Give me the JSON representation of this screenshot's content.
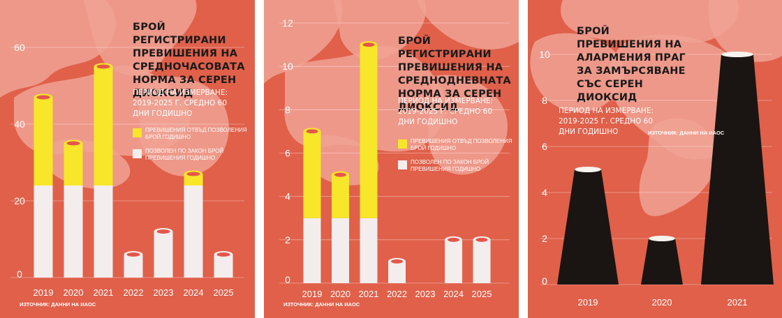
{
  "colors": {
    "background": "#e0604a",
    "smoke": "#f0a294",
    "yellow": "#f7e62a",
    "white": "#f3eded",
    "chimney": "#1a1512"
  },
  "panels": [
    {
      "title": "БРОЙ РЕГИСТРИРАНИ ПРЕВИШЕНИЯ НА СРЕДНОЧАСОВАТА НОРМА ЗА СЕРЕН ДИОКСИД",
      "period": "ПЕРИОД НА ИЗМЕРВАНЕ: 2019-2025 Г. СРЕДНО 60 ДНИ ГОДИШНО",
      "legend": [
        {
          "label": "ПРЕВИШЕНИЯ ОТВЪД ПОЗВОЛЕНИЯ БРОЙ ГОДИШНО",
          "color": "#f7e62a"
        },
        {
          "label": "ПОЗВОЛЕН ПО ЗАКОН БРОЙ ПРЕВИШЕНИЯ ГОДИШНО",
          "color": "#f3eded"
        }
      ],
      "source": "ИЗТОЧНИК: ДАННИ НА ИАОС"
    },
    {
      "title": "БРОЙ РЕГИСТРИРАНИ ПРЕВИШЕНИЯ НА СРЕДНОДНЕВНАТА НОРМА ЗА СЕРЕН ДИОКСИД",
      "period": "ПЕРИОД НА ИЗМЕРВАНЕ: 2019-2025 Г. СРЕДНО 60 ДНИ ГОДИШНО",
      "legend": [
        {
          "label": "ПРЕВИШЕНИЯ ОТВЪД ПОЗВОЛЕНИЯ БРОЙ ГОДИШНО",
          "color": "#f7e62a"
        },
        {
          "label": "ПОЗВОЛЕН ПО ЗАКОН БРОЙ ПРЕВИШЕНИЯ ГОДИШНО",
          "color": "#f3eded"
        }
      ],
      "source": "ИЗТОЧНИК: ДАННИ НА ИАОС"
    },
    {
      "title": "БРОЙ ПРЕВИШЕНИЯ НА АЛАРМЕНИЯ ПРАГ ЗА ЗАМЪРСЯВАНЕ СЪС СЕРЕН ДИОКСИД",
      "period": "ПЕРИОД НА ИЗМЕРВАНЕ: 2019-2025 Г. СРЕДНО 60 ДНИ ГОДИШНО",
      "source": "ИЗТОЧНИК: ДАННИ НА ИАОС"
    }
  ],
  "chart_data": [
    {
      "type": "bar",
      "title": "БРОЙ РЕГИСТРИРАНИ ПРЕВИШЕНИЯ НА СРЕДНОЧАСОВАТА НОРМА ЗА СЕРЕН ДИОКСИД",
      "categories": [
        "2019",
        "2020",
        "2021",
        "2022",
        "2023",
        "2024",
        "2025"
      ],
      "yticks": [
        "0",
        "20",
        "40",
        "60"
      ],
      "ylim": [
        0,
        60
      ],
      "series": [
        {
          "name": "ПОЗВОЛЕН ПО ЗАКОН БРОЙ ПРЕВИШЕНИЯ ГОДИШНО",
          "values": [
            24,
            24,
            24,
            6,
            12,
            24,
            6
          ]
        },
        {
          "name": "ПРЕВИШЕНИЯ ОТВЪД ПОЗВОЛЕНИЯ БРОЙ ГОДИШНО",
          "values": [
            23,
            11,
            31,
            0,
            0,
            3,
            0
          ]
        }
      ],
      "stacked": true,
      "grid": true
    },
    {
      "type": "bar",
      "title": "БРОЙ РЕГИСТРИРАНИ ПРЕВИШЕНИЯ НА СРЕДНОДНЕВНАТА НОРМА ЗА СЕРЕН ДИОКСИД",
      "categories": [
        "2019",
        "2020",
        "2021",
        "2022",
        "2023",
        "2024",
        "2025"
      ],
      "yticks": [
        "0",
        "2",
        "4",
        "6",
        "8",
        "10",
        "12"
      ],
      "ylim": [
        0,
        12
      ],
      "series": [
        {
          "name": "ПОЗВОЛЕН ПО ЗАКОН БРОЙ ПРЕВИШЕНИЯ ГОДИШНО",
          "values": [
            3,
            3,
            3,
            1,
            0,
            2,
            2
          ]
        },
        {
          "name": "ПРЕВИШЕНИЯ ОТВЪД ПОЗВОЛЕНИЯ БРОЙ ГОДИШНО",
          "values": [
            4,
            2,
            8,
            0,
            0,
            0,
            0
          ]
        }
      ],
      "stacked": true,
      "grid": true
    },
    {
      "type": "bar",
      "title": "БРОЙ ПРЕВИШЕНИЯ НА АЛАРМЕНИЯ ПРАГ ЗА ЗАМЪРСЯВАНЕ СЪС СЕРЕН ДИОКСИД",
      "categories": [
        "2019",
        "2020",
        "2021"
      ],
      "yticks": [
        "0",
        "2",
        "4",
        "6",
        "8",
        "10"
      ],
      "ylim": [
        0,
        10
      ],
      "values": [
        5,
        2,
        10
      ],
      "grid": true
    }
  ]
}
